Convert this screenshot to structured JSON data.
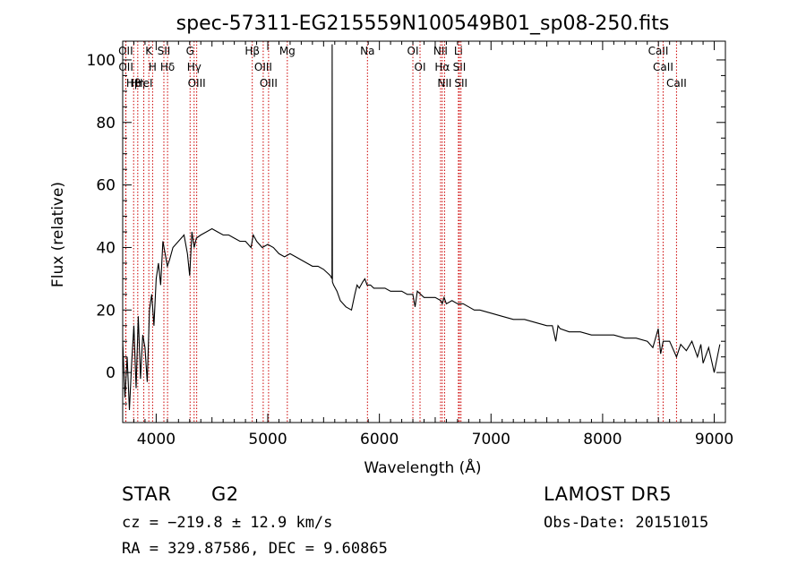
{
  "chart_data": {
    "type": "line",
    "title": "spec-57311-EG215559N100549B01_sp08-250.fits",
    "xlabel": "Wavelength (Å)",
    "ylabel": "Flux (relative)",
    "xlim": [
      3700,
      9100
    ],
    "ylim": [
      -16,
      106
    ],
    "x_ticks": [
      4000,
      5000,
      6000,
      7000,
      8000,
      9000
    ],
    "y_ticks": [
      0,
      20,
      40,
      60,
      80,
      100
    ],
    "grid": false,
    "series": [
      {
        "x": [
          3700,
          3720,
          3740,
          3760,
          3780,
          3800,
          3820,
          3840,
          3860,
          3880,
          3900,
          3920,
          3940,
          3960,
          3980,
          4000,
          4020,
          4040,
          4060,
          4080,
          4100,
          4120,
          4150,
          4200,
          4250,
          4280,
          4300,
          4320,
          4340,
          4360,
          4400,
          4450,
          4500,
          4550,
          4600,
          4650,
          4700,
          4750,
          4800,
          4850,
          4870,
          4900,
          4950,
          5000,
          5050,
          5100,
          5150,
          5200,
          5250,
          5300,
          5350,
          5400,
          5450,
          5500,
          5530,
          5560,
          5575,
          5577,
          5579,
          5590,
          5620,
          5650,
          5700,
          5750,
          5780,
          5800,
          5820,
          5850,
          5870,
          5890,
          5920,
          5950,
          6000,
          6050,
          6100,
          6150,
          6200,
          6250,
          6300,
          6320,
          6340,
          6400,
          6450,
          6500,
          6550,
          6563,
          6580,
          6600,
          6650,
          6700,
          6750,
          6800,
          6850,
          6900,
          7000,
          7100,
          7200,
          7300,
          7400,
          7500,
          7550,
          7580,
          7600,
          7620,
          7700,
          7800,
          7900,
          8000,
          8100,
          8200,
          8300,
          8400,
          8450,
          8498,
          8520,
          8542,
          8600,
          8662,
          8700,
          8750,
          8800,
          8850,
          8880,
          8900,
          8950,
          9000,
          9050
        ],
        "y": [
          10,
          -8,
          5,
          -12,
          3,
          15,
          -5,
          18,
          -2,
          12,
          8,
          -3,
          20,
          25,
          15,
          30,
          35,
          28,
          42,
          38,
          34,
          36,
          40,
          42,
          44,
          38,
          31,
          45,
          40,
          43,
          44,
          45,
          46,
          45,
          44,
          44,
          43,
          42,
          42,
          40,
          44,
          42,
          40,
          41,
          40,
          38,
          37,
          38,
          37,
          36,
          35,
          34,
          34,
          33,
          32,
          31,
          30,
          105,
          29,
          28,
          26,
          23,
          21,
          20,
          25,
          28,
          27,
          29,
          30,
          28,
          28,
          27,
          27,
          27,
          26,
          26,
          26,
          25,
          25,
          21,
          26,
          24,
          24,
          24,
          23,
          22,
          24,
          22,
          23,
          22,
          22,
          21,
          20,
          20,
          19,
          18,
          17,
          17,
          16,
          15,
          15,
          10,
          15,
          14,
          13,
          13,
          12,
          12,
          12,
          11,
          11,
          10,
          8,
          14,
          6,
          10,
          10,
          5,
          9,
          7,
          10,
          5,
          9,
          3,
          8,
          0,
          9
        ]
      }
    ],
    "lines": [
      {
        "name": "Hβ",
        "x": 3798
      },
      {
        "name": "OII",
        "x": 3727
      },
      {
        "name": "OII",
        "x": 3729
      },
      {
        "name": "Hη",
        "x": 3835
      },
      {
        "name": "K",
        "x": 3934
      },
      {
        "name": "HeI",
        "x": 3889
      },
      {
        "name": "H",
        "x": 3968
      },
      {
        "name": "Hδ",
        "x": 4102
      },
      {
        "name": "SII",
        "x": 4069
      },
      {
        "name": "OIII",
        "x": 4363
      },
      {
        "name": "Hγ",
        "x": 4340
      },
      {
        "name": "G",
        "x": 4304
      },
      {
        "name": "Hβ",
        "x": 4861
      },
      {
        "name": "OIII",
        "x": 5007
      },
      {
        "name": "OIII",
        "x": 4959
      },
      {
        "name": "Mg",
        "x": 5175
      },
      {
        "name": "Na",
        "x": 5893
      },
      {
        "name": "OI",
        "x": 6300
      },
      {
        "name": "OI",
        "x": 6364
      },
      {
        "name": "Hα",
        "x": 6563
      },
      {
        "name": "NII",
        "x": 6548
      },
      {
        "name": "NII",
        "x": 6584
      },
      {
        "name": "SII",
        "x": 6717
      },
      {
        "name": "Li",
        "x": 6708
      },
      {
        "name": "SII",
        "x": 6731
      },
      {
        "name": "CaII",
        "x": 8542
      },
      {
        "name": "CaII",
        "x": 8498
      },
      {
        "name": "CaII",
        "x": 8662
      }
    ]
  },
  "info": {
    "class": "STAR",
    "subclass": "G2",
    "survey": "LAMOST DR5",
    "cz": "cz = −219.8 ± 12.9 km/s",
    "obs_date": "Obs-Date: 20151015",
    "coords": "RA = 329.87586, DEC =   9.60865"
  }
}
